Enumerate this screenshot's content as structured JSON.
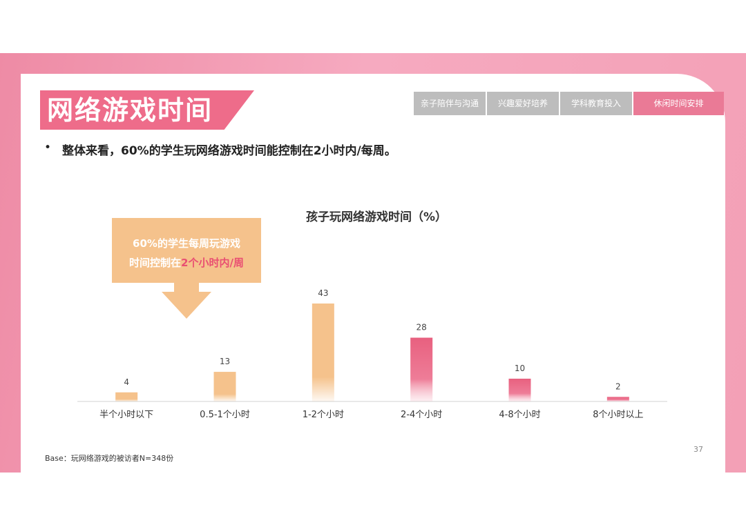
{
  "header": {
    "title": "网络游戏时间",
    "tabs": [
      "亲子陪伴与沟通",
      "兴趣爱好培养",
      "学科教育投入",
      "休闲时间安排"
    ],
    "active_tab": 3
  },
  "bullet": {
    "marker": "•",
    "text": "整体来看，60%的学生玩网络游戏时间能控制在2小时内/每周。"
  },
  "callout": {
    "line1": "60%的学生每周玩游戏",
    "line2_prefix": "时间控制在",
    "line2_highlight": "2个小时内/周"
  },
  "footer": {
    "base": "Base：玩网络游戏的被访者N=348份",
    "page": "37"
  },
  "colors": {
    "accent": "#ee6c8a",
    "bar_orange": "#f5c28c",
    "bar_pink": "#e8607f"
  },
  "chart_data": {
    "type": "bar",
    "title": "孩子玩网络游戏时间（%）",
    "categories": [
      "半个小时以下",
      "0.5-1个小时",
      "1-2个小时",
      "2-4个小时",
      "4-8个小时",
      "8个小时以上"
    ],
    "values": [
      4,
      13,
      43,
      28,
      10,
      2
    ],
    "bar_colors": [
      "orange",
      "orange",
      "orange",
      "pink",
      "pink",
      "pink"
    ],
    "xlabel": "",
    "ylabel": "",
    "ylim": [
      0,
      43
    ],
    "grid": false
  }
}
